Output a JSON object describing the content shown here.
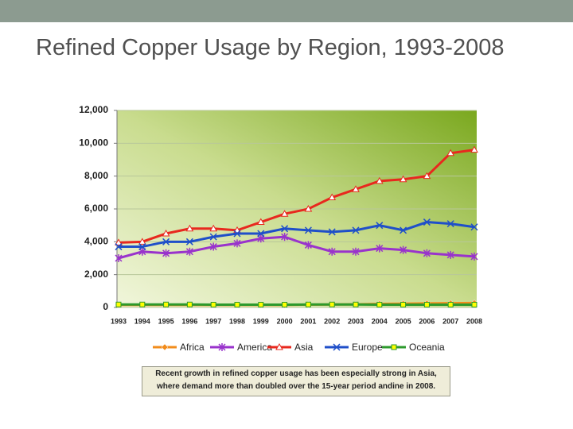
{
  "chart_data": {
    "type": "line",
    "title": "Refined Copper Usage by Region, 1993-2008",
    "caption": "Recent growth in refined copper usage has been especially strong in Asia, where demand more than doubled over the 15-year period andine in 2008.",
    "categories": [
      "1993",
      "1994",
      "1995",
      "1996",
      "1997",
      "1998",
      "1999",
      "2000",
      "2001",
      "2002",
      "2003",
      "2004",
      "2005",
      "2006",
      "2007",
      "2008"
    ],
    "series": [
      {
        "name": "Africa",
        "color": "#f28c1c",
        "marker": "diamond",
        "values": [
          150,
          150,
          150,
          150,
          150,
          150,
          150,
          150,
          170,
          180,
          190,
          220,
          230,
          250,
          260,
          270
        ]
      },
      {
        "name": "America",
        "color": "#9933cc",
        "marker": "star",
        "values": [
          3000,
          3400,
          3300,
          3400,
          3700,
          3900,
          4200,
          4300,
          3800,
          3400,
          3400,
          3600,
          3500,
          3300,
          3200,
          3100
        ]
      },
      {
        "name": "Asia",
        "color": "#e8281e",
        "marker": "triangle",
        "values": [
          3950,
          4000,
          4500,
          4800,
          4800,
          4700,
          5200,
          5700,
          6000,
          6700,
          7200,
          7700,
          7800,
          8000,
          9400,
          9600
        ]
      },
      {
        "name": "Europe",
        "color": "#1f4fc9",
        "marker": "x",
        "values": [
          3700,
          3700,
          4000,
          4000,
          4300,
          4500,
          4500,
          4800,
          4700,
          4600,
          4700,
          5000,
          4700,
          5200,
          5100,
          4900
        ]
      },
      {
        "name": "Oceania",
        "color": "#2d9a2d",
        "marker": "square",
        "values": [
          180,
          180,
          180,
          180,
          170,
          170,
          170,
          170,
          180,
          180,
          180,
          170,
          170,
          170,
          170,
          170
        ]
      }
    ],
    "ylim": [
      0,
      12000
    ],
    "yticks": [
      0,
      {
        "value": 2000,
        "label": "2,000"
      },
      {
        "value": 4000,
        "label": "4,000"
      },
      {
        "value": 6000,
        "label": "6,000"
      },
      {
        "value": 8000,
        "label": "8,000"
      },
      {
        "value": 10000,
        "label": "10,000"
      },
      {
        "value": 12000,
        "label": "12,000"
      }
    ],
    "grid": true
  }
}
